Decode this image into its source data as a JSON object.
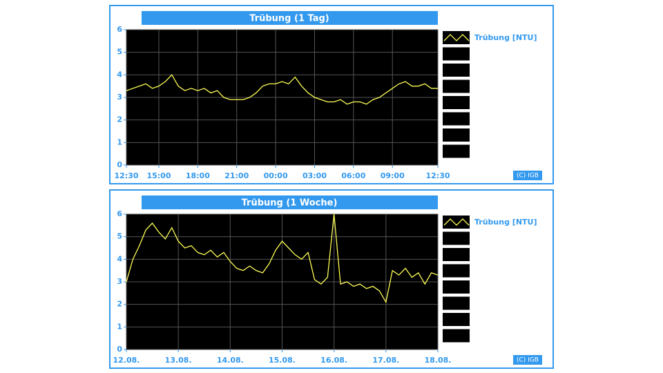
{
  "chart_data": [
    {
      "type": "line",
      "title": "Trübung (1 Tag)",
      "credit": "(C) IGB",
      "categories": [
        "12:30",
        null,
        null,
        null,
        null,
        "15:00",
        null,
        null,
        null,
        null,
        null,
        "18:00",
        null,
        null,
        null,
        null,
        null,
        "21:00",
        null,
        null,
        null,
        null,
        null,
        "00:00",
        null,
        null,
        null,
        null,
        null,
        "03:00",
        null,
        null,
        null,
        null,
        null,
        "06:00",
        null,
        null,
        null,
        null,
        null,
        "09:00",
        null,
        null,
        null,
        null,
        null,
        null,
        "12:30"
      ],
      "series": [
        {
          "name": "Trübung [NTU]",
          "color": "#ffff55",
          "values": [
            3.3,
            3.4,
            3.5,
            3.6,
            3.4,
            3.5,
            3.7,
            4.0,
            3.5,
            3.3,
            3.4,
            3.3,
            3.4,
            3.2,
            3.3,
            3.0,
            2.9,
            2.9,
            2.9,
            3.0,
            3.2,
            3.5,
            3.6,
            3.6,
            3.7,
            3.6,
            3.9,
            3.5,
            3.2,
            3.0,
            2.9,
            2.8,
            2.8,
            2.9,
            2.7,
            2.8,
            2.8,
            2.7,
            2.9,
            3.0,
            3.2,
            3.4,
            3.6,
            3.7,
            3.5,
            3.5,
            3.6,
            3.4,
            3.4
          ]
        }
      ],
      "ylim": [
        0,
        6
      ],
      "yticks": [
        0,
        1,
        2,
        3,
        4,
        5,
        6
      ],
      "grid": true
    },
    {
      "type": "line",
      "title": "Trübung (1 Woche)",
      "credit": "(C) IGB",
      "categories": [
        "12.08.",
        null,
        null,
        null,
        null,
        null,
        null,
        null,
        "13.08.",
        null,
        null,
        null,
        null,
        null,
        null,
        null,
        "14.08.",
        null,
        null,
        null,
        null,
        null,
        null,
        null,
        "15.08.",
        null,
        null,
        null,
        null,
        null,
        null,
        null,
        "16.08.",
        null,
        null,
        null,
        null,
        null,
        null,
        null,
        "17.08.",
        null,
        null,
        null,
        null,
        null,
        null,
        null,
        "18.08."
      ],
      "series": [
        {
          "name": "Trübung [NTU]",
          "color": "#ffff55",
          "values": [
            3.0,
            4.0,
            4.6,
            5.3,
            5.6,
            5.2,
            4.9,
            5.4,
            4.8,
            4.5,
            4.6,
            4.3,
            4.2,
            4.4,
            4.1,
            4.3,
            3.9,
            3.6,
            3.5,
            3.7,
            3.5,
            3.4,
            3.8,
            4.4,
            4.8,
            4.5,
            4.2,
            4.0,
            4.3,
            3.1,
            2.9,
            3.2,
            6.0,
            2.9,
            3.0,
            2.8,
            2.9,
            2.7,
            2.8,
            2.6,
            2.1,
            3.5,
            3.3,
            3.6,
            3.2,
            3.4,
            2.9,
            3.4,
            3.3
          ]
        }
      ],
      "ylim": [
        0,
        6
      ],
      "yticks": [
        0,
        1,
        2,
        3,
        4,
        5,
        6
      ],
      "grid": true
    }
  ]
}
